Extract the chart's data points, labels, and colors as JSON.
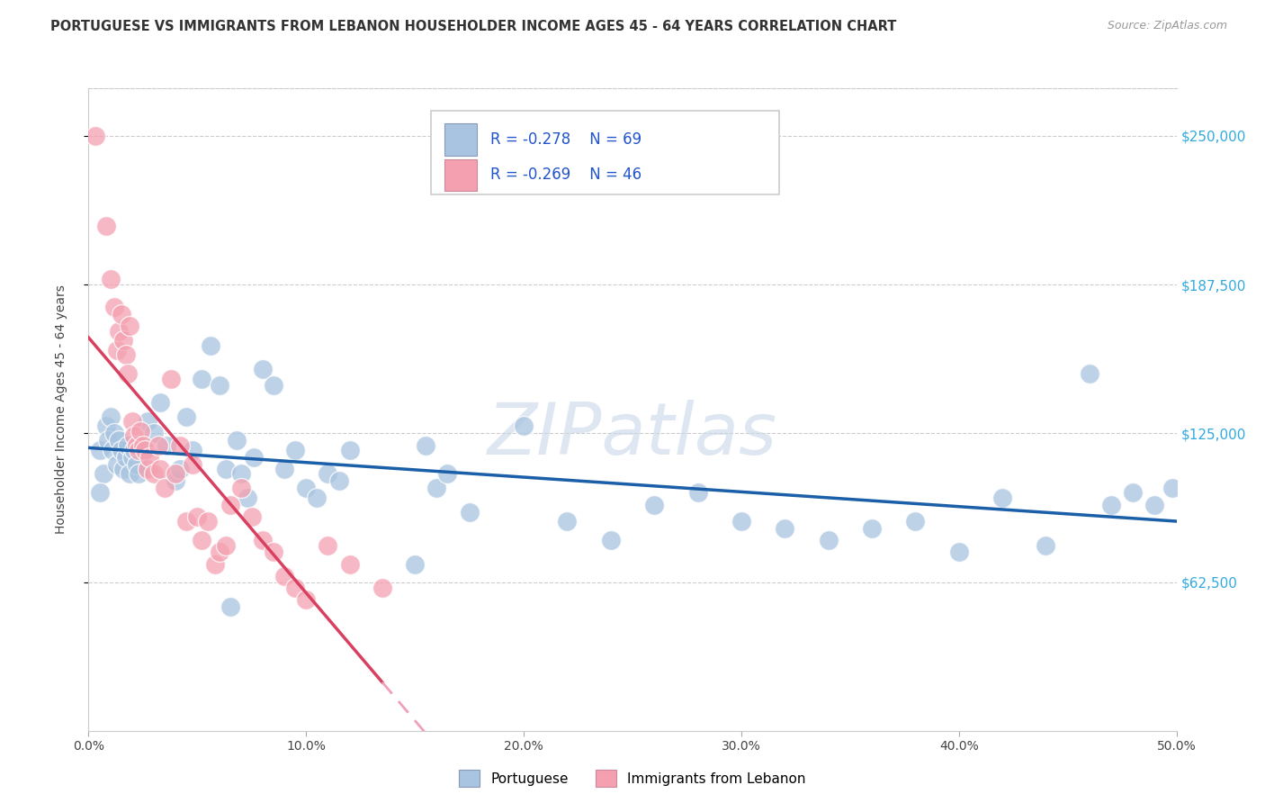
{
  "title": "PORTUGUESE VS IMMIGRANTS FROM LEBANON HOUSEHOLDER INCOME AGES 45 - 64 YEARS CORRELATION CHART",
  "source": "Source: ZipAtlas.com",
  "ylabel": "Householder Income Ages 45 - 64 years",
  "ytick_labels": [
    "$62,500",
    "$125,000",
    "$187,500",
    "$250,000"
  ],
  "ytick_values": [
    62500,
    125000,
    187500,
    250000
  ],
  "ymin": 0,
  "ymax": 270000,
  "xmin": 0.0,
  "xmax": 0.5,
  "legend_label1": "Portuguese",
  "legend_label2": "Immigrants from Lebanon",
  "R1": -0.278,
  "N1": 69,
  "R2": -0.269,
  "N2": 46,
  "color_blue": "#a8c4e0",
  "color_pink": "#f4a0b0",
  "color_blue_line": "#1a5fa8",
  "color_pink_line": "#d94060",
  "color_pink_dashed": "#f0a0b8",
  "watermark_text": "ZIPatlas",
  "watermark_color": "#c8d8e8",
  "blue_points": [
    [
      0.005,
      118000
    ],
    [
      0.007,
      108000
    ],
    [
      0.008,
      128000
    ],
    [
      0.009,
      122000
    ],
    [
      0.01,
      132000
    ],
    [
      0.011,
      118000
    ],
    [
      0.012,
      125000
    ],
    [
      0.013,
      112000
    ],
    [
      0.014,
      122000
    ],
    [
      0.015,
      118000
    ],
    [
      0.016,
      110000
    ],
    [
      0.017,
      115000
    ],
    [
      0.018,
      120000
    ],
    [
      0.019,
      108000
    ],
    [
      0.02,
      115000
    ],
    [
      0.021,
      118000
    ],
    [
      0.022,
      112000
    ],
    [
      0.023,
      108000
    ],
    [
      0.025,
      118000
    ],
    [
      0.027,
      130000
    ],
    [
      0.03,
      125000
    ],
    [
      0.033,
      138000
    ],
    [
      0.036,
      120000
    ],
    [
      0.04,
      105000
    ],
    [
      0.042,
      110000
    ],
    [
      0.045,
      132000
    ],
    [
      0.048,
      118000
    ],
    [
      0.052,
      148000
    ],
    [
      0.056,
      162000
    ],
    [
      0.06,
      145000
    ],
    [
      0.063,
      110000
    ],
    [
      0.065,
      52000
    ],
    [
      0.068,
      122000
    ],
    [
      0.07,
      108000
    ],
    [
      0.073,
      98000
    ],
    [
      0.076,
      115000
    ],
    [
      0.08,
      152000
    ],
    [
      0.085,
      145000
    ],
    [
      0.09,
      110000
    ],
    [
      0.095,
      118000
    ],
    [
      0.1,
      102000
    ],
    [
      0.105,
      98000
    ],
    [
      0.11,
      108000
    ],
    [
      0.115,
      105000
    ],
    [
      0.12,
      118000
    ],
    [
      0.15,
      70000
    ],
    [
      0.155,
      120000
    ],
    [
      0.16,
      102000
    ],
    [
      0.165,
      108000
    ],
    [
      0.175,
      92000
    ],
    [
      0.2,
      128000
    ],
    [
      0.22,
      88000
    ],
    [
      0.24,
      80000
    ],
    [
      0.26,
      95000
    ],
    [
      0.28,
      100000
    ],
    [
      0.3,
      88000
    ],
    [
      0.32,
      85000
    ],
    [
      0.34,
      80000
    ],
    [
      0.36,
      85000
    ],
    [
      0.38,
      88000
    ],
    [
      0.4,
      75000
    ],
    [
      0.42,
      98000
    ],
    [
      0.44,
      78000
    ],
    [
      0.46,
      150000
    ],
    [
      0.47,
      95000
    ],
    [
      0.48,
      100000
    ],
    [
      0.49,
      95000
    ],
    [
      0.498,
      102000
    ],
    [
      0.005,
      100000
    ]
  ],
  "pink_points": [
    [
      0.003,
      250000
    ],
    [
      0.008,
      212000
    ],
    [
      0.01,
      190000
    ],
    [
      0.012,
      178000
    ],
    [
      0.013,
      160000
    ],
    [
      0.014,
      168000
    ],
    [
      0.015,
      175000
    ],
    [
      0.016,
      164000
    ],
    [
      0.017,
      158000
    ],
    [
      0.018,
      150000
    ],
    [
      0.019,
      170000
    ],
    [
      0.02,
      130000
    ],
    [
      0.021,
      124000
    ],
    [
      0.022,
      120000
    ],
    [
      0.023,
      118000
    ],
    [
      0.024,
      126000
    ],
    [
      0.025,
      120000
    ],
    [
      0.026,
      118000
    ],
    [
      0.027,
      110000
    ],
    [
      0.028,
      115000
    ],
    [
      0.03,
      108000
    ],
    [
      0.032,
      120000
    ],
    [
      0.033,
      110000
    ],
    [
      0.035,
      102000
    ],
    [
      0.038,
      148000
    ],
    [
      0.04,
      108000
    ],
    [
      0.042,
      120000
    ],
    [
      0.045,
      88000
    ],
    [
      0.048,
      112000
    ],
    [
      0.05,
      90000
    ],
    [
      0.052,
      80000
    ],
    [
      0.055,
      88000
    ],
    [
      0.058,
      70000
    ],
    [
      0.06,
      75000
    ],
    [
      0.063,
      78000
    ],
    [
      0.065,
      95000
    ],
    [
      0.07,
      102000
    ],
    [
      0.075,
      90000
    ],
    [
      0.08,
      80000
    ],
    [
      0.085,
      75000
    ],
    [
      0.09,
      65000
    ],
    [
      0.095,
      60000
    ],
    [
      0.1,
      55000
    ],
    [
      0.11,
      78000
    ],
    [
      0.12,
      70000
    ],
    [
      0.135,
      60000
    ]
  ]
}
